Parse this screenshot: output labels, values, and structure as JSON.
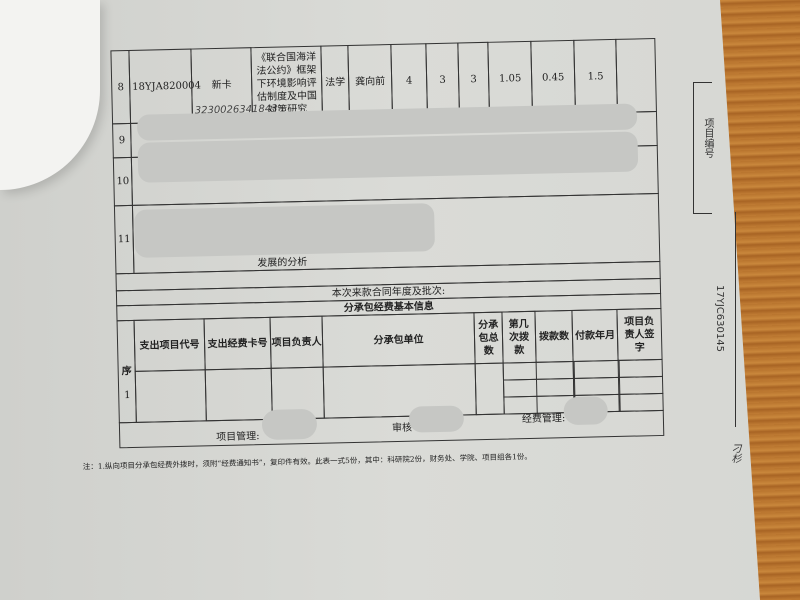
{
  "row8": {
    "no": "8",
    "code": "18YJA820004",
    "card": "新卡",
    "card_handwritten": "3230026341843",
    "title": "《联合国海洋法公约》框架下环境影响评估制度及中国对策研究",
    "discipline": "法学",
    "leader": "龚向前",
    "v1": "4",
    "v2": "3",
    "v3": "3",
    "v4": "1.05",
    "v5": "0.45",
    "v6": "1.5"
  },
  "row9": {
    "no": "9"
  },
  "row10": {
    "no": "10"
  },
  "row11": {
    "no": "11",
    "title_tail": "发展的分析"
  },
  "batch_label": "本次来款合同年度及批次:",
  "sub_title": "分承包经费基本信息",
  "sub_headers": [
    "序",
    "支出项目代号",
    "支出经费卡号",
    "项目负责人",
    "分承包单位",
    "分承包总数",
    "第几次拨款",
    "拨款数",
    "付款年月",
    "项目负责人签字"
  ],
  "sub_row": {
    "no": "1"
  },
  "signatures": {
    "project_mgmt": "项目管理:",
    "review": "审核",
    "fund_mgmt": "经费管理:"
  },
  "note": "注：1.纵向项目分承包经费外拨时，须附“经费通知书”，复印件有效。此表一式5份，其中：科研院2份，财务处、学院、项目组各1份。",
  "side": {
    "label": "项目编号",
    "project_no": "17YJC630145",
    "handwritten": "刁杉"
  }
}
